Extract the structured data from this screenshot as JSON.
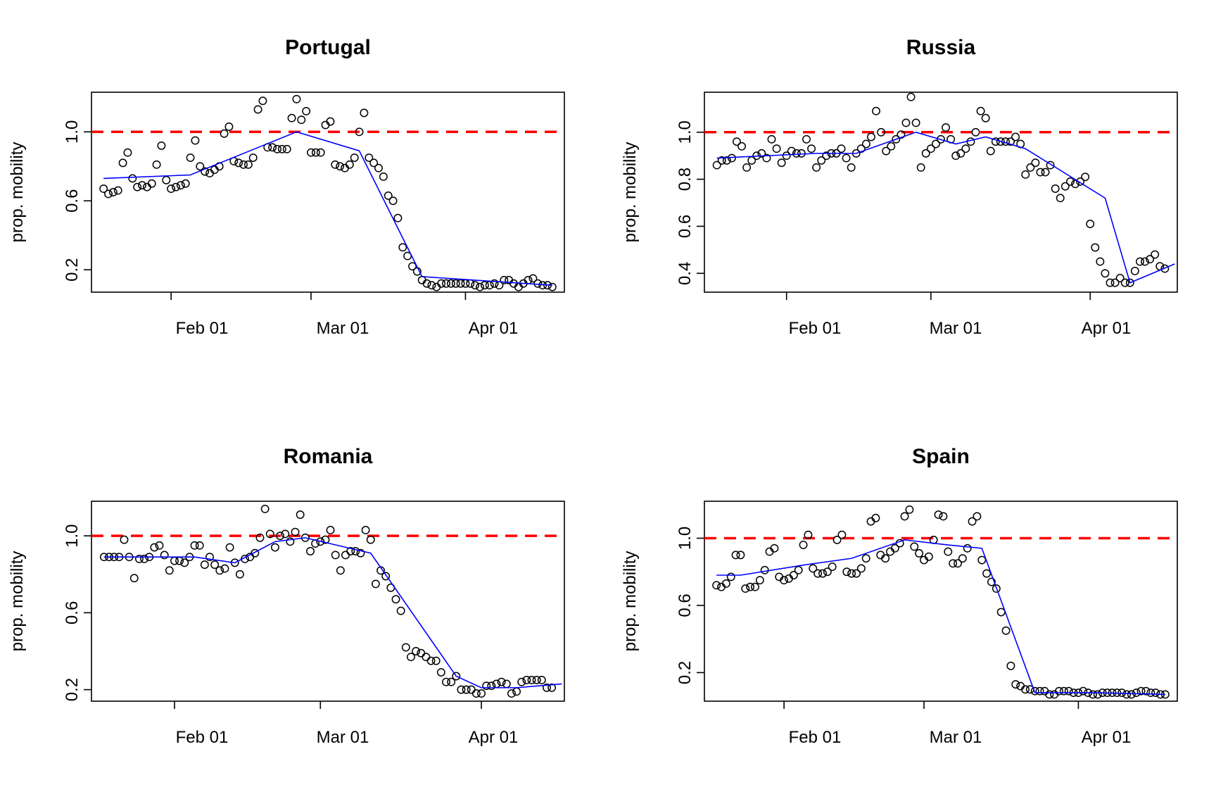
{
  "chart_data": [
    {
      "type": "scatter",
      "title": "Portugal",
      "ylabel": "prop. mobility",
      "x_tick_labels": [
        "Feb 01",
        "Mar 01",
        "Apr 01"
      ],
      "y_tick_values": [
        0.2,
        0.6,
        1.0
      ],
      "y_tick_labels": [
        "0.2",
        "0.6",
        "1.0"
      ],
      "ylim": [
        0.07,
        1.23
      ],
      "x_start": "2020-01-18",
      "reference_line": 1.0,
      "colors": {
        "points": "#000000",
        "trend": "#0000ff",
        "reference": "#ff0000"
      },
      "series": [
        {
          "values": [
            0.67,
            0.64,
            0.65,
            0.66,
            0.82,
            0.88,
            0.73,
            0.68,
            0.69,
            0.68,
            0.7,
            0.81,
            0.92,
            0.72,
            0.67,
            0.68,
            0.69,
            0.7,
            0.85,
            0.95,
            0.8,
            0.77,
            0.76,
            0.78,
            0.8,
            0.99,
            1.03,
            0.83,
            0.82,
            0.81,
            0.81,
            0.85,
            1.13,
            1.18,
            0.91,
            0.91,
            0.9,
            0.9,
            0.9,
            1.08,
            1.19,
            1.07,
            1.12,
            0.88,
            0.88,
            0.88,
            1.04,
            1.06,
            0.81,
            0.8,
            0.79,
            0.81,
            0.85,
            1.0,
            1.11,
            0.85,
            0.82,
            0.79,
            0.74,
            0.63,
            0.6,
            0.5,
            0.33,
            0.28,
            0.22,
            0.19,
            0.14,
            0.12,
            0.11,
            0.1,
            0.12,
            0.12,
            0.12,
            0.12,
            0.12,
            0.12,
            0.12,
            0.11,
            0.1,
            0.11,
            0.11,
            0.12,
            0.11,
            0.14,
            0.14,
            0.12,
            0.1,
            0.12,
            0.14,
            0.15,
            0.12,
            0.11,
            0.11,
            0.1
          ]
        },
        {
          "type": "line",
          "x_index": [
            0,
            18,
            40,
            53,
            66,
            93
          ],
          "values": [
            0.73,
            0.75,
            1.0,
            0.89,
            0.16,
            0.11
          ]
        }
      ]
    },
    {
      "type": "scatter",
      "title": "Russia",
      "ylabel": "prop. mobility",
      "x_tick_labels": [
        "Feb 01",
        "Mar 01",
        "Apr 01"
      ],
      "y_tick_values": [
        0.4,
        0.6,
        0.8,
        1.0
      ],
      "y_tick_labels": [
        "0.4",
        "0.6",
        "0.8",
        "1.0"
      ],
      "ylim": [
        0.32,
        1.17
      ],
      "x_start": "2020-01-18",
      "reference_line": 1.0,
      "colors": {
        "points": "#000000",
        "trend": "#0000ff",
        "reference": "#ff0000"
      },
      "series": [
        {
          "values": [
            0.86,
            0.88,
            0.88,
            0.89,
            0.96,
            0.94,
            0.85,
            0.88,
            0.9,
            0.91,
            0.89,
            0.97,
            0.93,
            0.87,
            0.9,
            0.92,
            0.91,
            0.91,
            0.97,
            0.93,
            0.85,
            0.88,
            0.9,
            0.91,
            0.91,
            0.93,
            0.89,
            0.85,
            0.91,
            0.93,
            0.95,
            0.98,
            1.09,
            1.0,
            0.92,
            0.94,
            0.97,
            0.99,
            1.04,
            1.15,
            1.04,
            0.85,
            0.91,
            0.93,
            0.95,
            0.97,
            1.02,
            0.97,
            0.9,
            0.91,
            0.93,
            0.96,
            1.0,
            1.09,
            1.06,
            0.92,
            0.96,
            0.96,
            0.96,
            0.96,
            0.98,
            0.95,
            0.82,
            0.85,
            0.87,
            0.83,
            0.83,
            0.86,
            0.76,
            0.72,
            0.77,
            0.79,
            0.78,
            0.79,
            0.81,
            0.61,
            0.51,
            0.45,
            0.4,
            0.36,
            0.36,
            0.38,
            0.36,
            0.36,
            0.41,
            0.45,
            0.45,
            0.46,
            0.48,
            0.43,
            0.42
          ]
        },
        {
          "type": "line",
          "x_index": [
            0,
            20,
            28,
            40,
            48,
            54,
            62,
            78,
            83,
            92
          ],
          "values": [
            0.89,
            0.91,
            0.91,
            1.0,
            0.95,
            0.98,
            0.93,
            0.72,
            0.36,
            0.44
          ]
        }
      ]
    },
    {
      "type": "scatter",
      "title": "Romania",
      "ylabel": "prop. mobility",
      "x_tick_labels": [
        "Feb 01",
        "Mar 01",
        "Apr 01"
      ],
      "y_tick_values": [
        0.2,
        0.6,
        1.0
      ],
      "y_tick_labels": [
        "0.2",
        "0.6",
        "1.0"
      ],
      "ylim": [
        0.14,
        1.18
      ],
      "x_start": "2020-01-18",
      "reference_line": 1.0,
      "colors": {
        "points": "#000000",
        "trend": "#0000ff",
        "reference": "#ff0000"
      },
      "series": [
        {
          "values": [
            0.89,
            0.89,
            0.89,
            0.89,
            0.98,
            0.89,
            0.78,
            0.88,
            0.88,
            0.89,
            0.94,
            0.95,
            0.9,
            0.82,
            0.87,
            0.87,
            0.86,
            0.89,
            0.95,
            0.95,
            0.85,
            0.89,
            0.85,
            0.82,
            0.83,
            0.94,
            0.86,
            0.8,
            0.88,
            0.89,
            0.91,
            0.99,
            1.14,
            1.01,
            0.94,
            1.0,
            1.01,
            0.97,
            1.02,
            1.11,
            0.99,
            0.92,
            0.96,
            0.97,
            0.98,
            1.03,
            0.9,
            0.82,
            0.9,
            0.92,
            0.92,
            0.91,
            1.03,
            0.98,
            0.75,
            0.82,
            0.79,
            0.73,
            0.67,
            0.61,
            0.42,
            0.37,
            0.4,
            0.39,
            0.37,
            0.35,
            0.35,
            0.29,
            0.24,
            0.24,
            0.27,
            0.2,
            0.2,
            0.2,
            0.18,
            0.18,
            0.22,
            0.22,
            0.23,
            0.24,
            0.23,
            0.18,
            0.19,
            0.24,
            0.25,
            0.25,
            0.25,
            0.25,
            0.21,
            0.21
          ]
        },
        {
          "type": "line",
          "x_index": [
            0,
            18,
            26,
            34,
            40,
            53,
            70,
            75,
            82,
            91
          ],
          "values": [
            0.89,
            0.89,
            0.86,
            0.97,
            0.99,
            0.91,
            0.27,
            0.21,
            0.21,
            0.23
          ]
        }
      ]
    },
    {
      "type": "scatter",
      "title": "Spain",
      "ylabel": "prop. mobility",
      "x_tick_labels": [
        "Feb 01",
        "Mar 01",
        "Apr 01"
      ],
      "y_tick_values": [
        0.2,
        0.6,
        1.0
      ],
      "y_tick_labels": [
        "0.2",
        "0.6",
        "1.0"
      ],
      "ylim": [
        0.03,
        1.22
      ],
      "x_start": "2020-01-18",
      "reference_line": 1.0,
      "colors": {
        "points": "#000000",
        "trend": "#0000ff",
        "reference": "#ff0000"
      },
      "series": [
        {
          "values": [
            0.72,
            0.71,
            0.73,
            0.77,
            0.9,
            0.9,
            0.7,
            0.71,
            0.71,
            0.75,
            0.81,
            0.92,
            0.94,
            0.77,
            0.75,
            0.76,
            0.78,
            0.81,
            0.96,
            1.02,
            0.82,
            0.79,
            0.79,
            0.8,
            0.83,
            0.99,
            1.02,
            0.8,
            0.79,
            0.79,
            0.82,
            0.88,
            1.1,
            1.12,
            0.9,
            0.88,
            0.92,
            0.94,
            0.97,
            1.13,
            1.17,
            0.95,
            0.91,
            0.87,
            0.89,
            0.99,
            1.14,
            1.13,
            0.92,
            0.85,
            0.85,
            0.88,
            0.94,
            1.1,
            1.13,
            0.87,
            0.79,
            0.74,
            0.7,
            0.56,
            0.45,
            0.24,
            0.13,
            0.12,
            0.1,
            0.1,
            0.09,
            0.09,
            0.09,
            0.07,
            0.07,
            0.09,
            0.09,
            0.09,
            0.08,
            0.08,
            0.09,
            0.08,
            0.07,
            0.07,
            0.08,
            0.08,
            0.08,
            0.08,
            0.08,
            0.07,
            0.07,
            0.08,
            0.09,
            0.09,
            0.08,
            0.08,
            0.07,
            0.07
          ]
        },
        {
          "type": "line",
          "x_index": [
            0,
            5,
            18,
            28,
            39,
            48,
            55,
            66,
            79,
            93
          ],
          "values": [
            0.78,
            0.78,
            0.84,
            0.88,
            0.99,
            0.96,
            0.94,
            0.08,
            0.08,
            0.07
          ]
        }
      ]
    }
  ]
}
